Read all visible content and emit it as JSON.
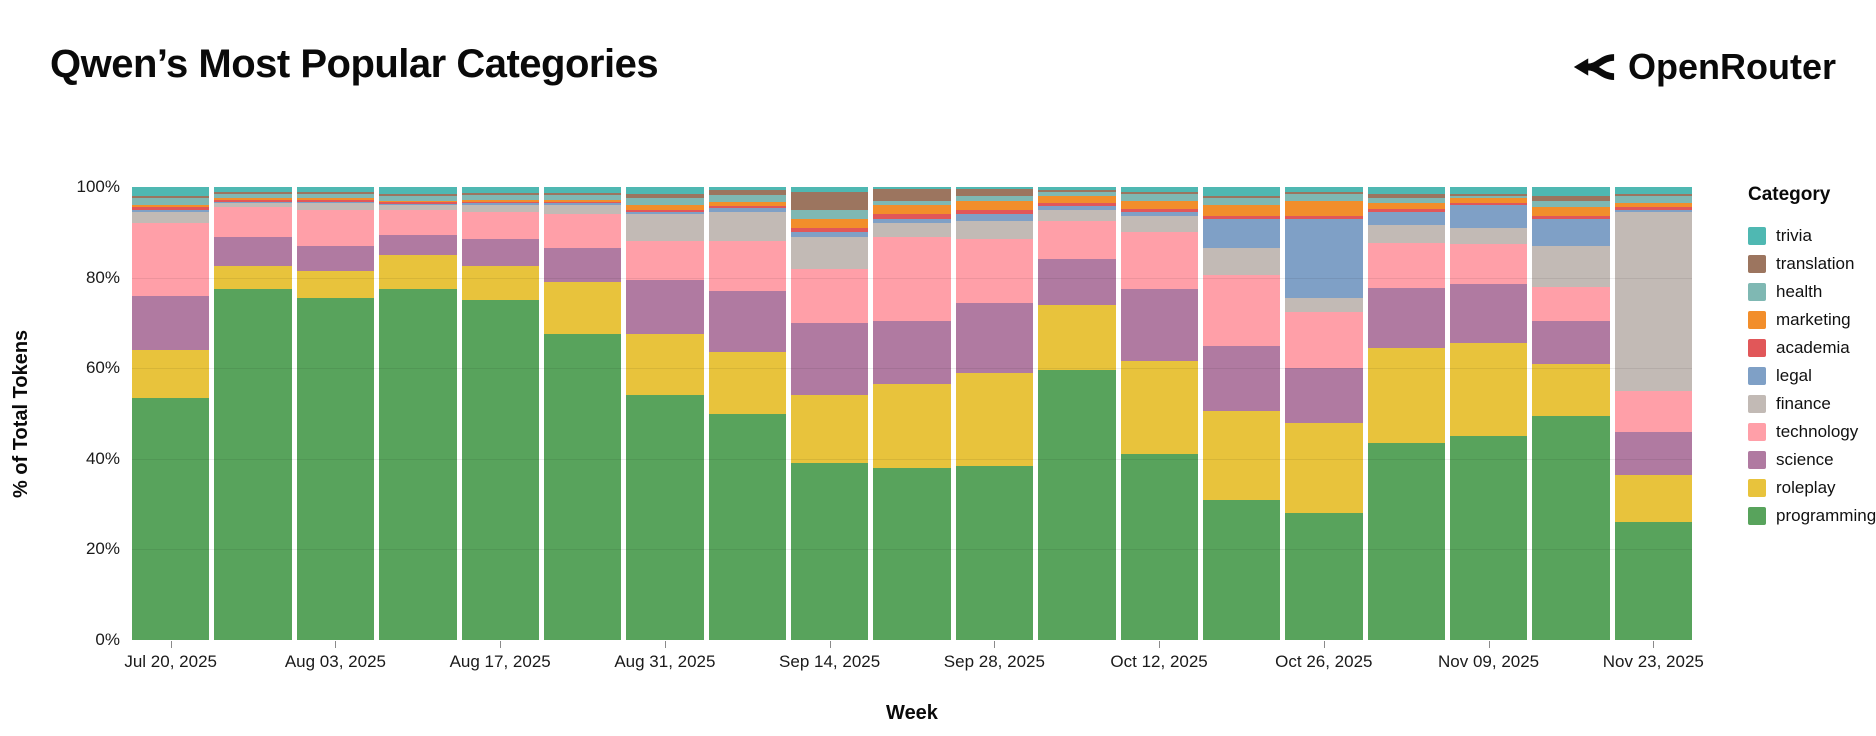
{
  "header": {
    "title": "Qwen’s Most Popular Categories",
    "brand": "OpenRouter"
  },
  "chart_data": {
    "type": "bar",
    "variant": "stacked-100-percent",
    "title": "Qwen’s Most Popular Categories",
    "xlabel": "Week",
    "ylabel": "% of Total Tokens",
    "legend_title": "Category",
    "legend_position": "right",
    "grid": true,
    "ylim": [
      0,
      100
    ],
    "yticks": [
      0,
      20,
      40,
      60,
      80,
      100
    ],
    "ytick_suffix": "%",
    "xtick_every": 2,
    "x": [
      "Jul 20, 2025",
      "Jul 27, 2025",
      "Aug 03, 2025",
      "Aug 10, 2025",
      "Aug 17, 2025",
      "Aug 24, 2025",
      "Aug 31, 2025",
      "Sep 07, 2025",
      "Sep 14, 2025",
      "Sep 21, 2025",
      "Sep 28, 2025",
      "Oct 05, 2025",
      "Oct 12, 2025",
      "Oct 19, 2025",
      "Oct 26, 2025",
      "Nov 02, 2025",
      "Nov 09, 2025",
      "Nov 16, 2025",
      "Nov 23, 2025"
    ],
    "series": [
      {
        "name": "programming",
        "color": "#58A35C",
        "values": [
          53.5,
          77.5,
          75.5,
          77.5,
          75,
          67.5,
          54,
          50,
          39,
          38,
          38.5,
          59.5,
          41,
          31,
          28,
          44,
          45,
          49.5,
          26
        ]
      },
      {
        "name": "roleplay",
        "color": "#E8C33C",
        "values": [
          10.5,
          5,
          6,
          7.5,
          7.5,
          11.5,
          13.5,
          13.5,
          15,
          18.5,
          20.5,
          14.5,
          20.5,
          19.5,
          20,
          21,
          20.5,
          11.5,
          10.5
        ]
      },
      {
        "name": "science",
        "color": "#B07AA1",
        "values": [
          12,
          6.5,
          5.5,
          4.5,
          6,
          7.5,
          12,
          13.5,
          16,
          14,
          15.5,
          10,
          16,
          14.5,
          12,
          13.5,
          13,
          9.5,
          9.5
        ]
      },
      {
        "name": "technology",
        "color": "#FF9FA8",
        "values": [
          16,
          6.5,
          8,
          5.5,
          6,
          7.5,
          8.5,
          11,
          12,
          18.5,
          14,
          8.5,
          12.5,
          15.5,
          12.5,
          10,
          9,
          7.5,
          9
        ]
      },
      {
        "name": "finance",
        "color": "#C2BAB5",
        "values": [
          2.5,
          1,
          1.5,
          1,
          1.5,
          2,
          6,
          6.5,
          7,
          3,
          4,
          2.5,
          3.5,
          6,
          3,
          4,
          3.5,
          9,
          39.5
        ]
      },
      {
        "name": "legal",
        "color": "#7FA0C6",
        "values": [
          0.5,
          0.3,
          0.3,
          0.3,
          0.5,
          0.5,
          0.5,
          0.8,
          1,
          1,
          1.5,
          0.8,
          1,
          6.5,
          17.5,
          3,
          5,
          6,
          0.5
        ]
      },
      {
        "name": "academia",
        "color": "#E15759",
        "values": [
          0.5,
          0.3,
          0.3,
          0.3,
          0.3,
          0.3,
          0.5,
          0.5,
          1,
          1,
          1,
          0.7,
          0.7,
          0.5,
          0.5,
          0.5,
          0.5,
          0.5,
          0.5
        ]
      },
      {
        "name": "marketing",
        "color": "#F28E2B",
        "values": [
          0.5,
          0.4,
          0.4,
          0.4,
          0.4,
          0.4,
          1,
          1,
          2,
          2,
          2,
          1.5,
          1.8,
          2.5,
          3.5,
          1.5,
          1,
          2,
          1
        ]
      },
      {
        "name": "health",
        "color": "#7FB8B3",
        "values": [
          1.5,
          1,
          1,
          1,
          1,
          1,
          1.5,
          1.5,
          2,
          1,
          1,
          1,
          1.5,
          1.5,
          1.5,
          1,
          0.5,
          1.5,
          1.5
        ]
      },
      {
        "name": "translation",
        "color": "#9C755F",
        "values": [
          0.5,
          0.5,
          0.5,
          0.5,
          0.5,
          0.5,
          1,
          1,
          4,
          2.5,
          1.5,
          0.3,
          0.5,
          0.5,
          0.5,
          1,
          0.5,
          1,
          0.5
        ]
      },
      {
        "name": "trivia",
        "color": "#4FB8B2",
        "values": [
          2,
          1,
          1,
          1.5,
          1.3,
          1.3,
          1.5,
          0.7,
          1,
          0.5,
          0.5,
          0.7,
          1,
          2,
          1,
          1.5,
          1.5,
          2,
          1.5
        ]
      }
    ]
  }
}
